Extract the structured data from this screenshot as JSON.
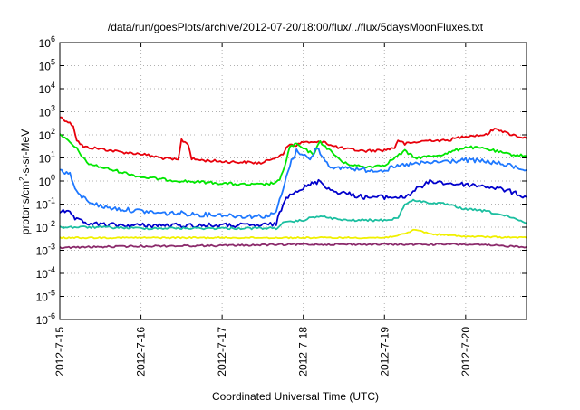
{
  "chart_data": {
    "type": "line",
    "title": "/data/run/goesPlots/archive/2012-07-20/18:00/flux/../flux/5daysMoonFluxes.txt",
    "xlabel": "Coordinated Universal Time (UTC)",
    "ylabel": {
      "prefix": "protons/cm",
      "sup": "2",
      "suffix": "-s-sr-MeV"
    },
    "y_scale": "log",
    "ylim": [
      1e-06,
      1000000.0
    ],
    "xlim": [
      "2012-07-15T00:00",
      "2012-07-20T18:00"
    ],
    "grid": true,
    "legend": "none",
    "x_ticks": [
      {
        "x": "2012-07-15T00:00",
        "label": "2012-7-15"
      },
      {
        "x": "2012-07-16T00:00",
        "label": "2012-7-16"
      },
      {
        "x": "2012-07-17T00:00",
        "label": "2012-7-17"
      },
      {
        "x": "2012-07-18T00:00",
        "label": "2012-7-18"
      },
      {
        "x": "2012-07-19T00:00",
        "label": "2012-7-19"
      },
      {
        "x": "2012-07-20T00:00",
        "label": "2012-7-20"
      }
    ],
    "y_ticks": [
      {
        "base": "10",
        "exp": "-6"
      },
      {
        "base": "10",
        "exp": "-5"
      },
      {
        "base": "10",
        "exp": "-4"
      },
      {
        "base": "10",
        "exp": "-3"
      },
      {
        "base": "10",
        "exp": "-2"
      },
      {
        "base": "10",
        "exp": "-1"
      },
      {
        "base": "10",
        "exp": "0"
      },
      {
        "base": "10",
        "exp": "1"
      },
      {
        "base": "10",
        "exp": "2"
      },
      {
        "base": "10",
        "exp": "3"
      },
      {
        "base": "10",
        "exp": "4"
      },
      {
        "base": "10",
        "exp": "5"
      },
      {
        "base": "10",
        "exp": "6"
      }
    ],
    "series": [
      {
        "color": "#e8000b",
        "x": [
          "2012-07-15T00:00",
          "2012-07-15T02:00",
          "2012-07-15T04:00",
          "2012-07-15T05:00",
          "2012-07-15T07:00",
          "2012-07-15T12:00",
          "2012-07-15T18:00",
          "2012-07-16T00:00",
          "2012-07-16T06:00",
          "2012-07-16T11:00",
          "2012-07-16T12:00",
          "2012-07-16T14:00",
          "2012-07-16T15:00",
          "2012-07-16T18:00",
          "2012-07-17T00:00",
          "2012-07-17T06:00",
          "2012-07-17T12:00",
          "2012-07-17T15:00",
          "2012-07-17T18:00",
          "2012-07-17T19:00",
          "2012-07-17T20:00",
          "2012-07-17T22:00",
          "2012-07-18T00:00",
          "2012-07-18T04:00",
          "2012-07-18T06:00",
          "2012-07-18T08:00",
          "2012-07-18T12:00",
          "2012-07-18T18:00",
          "2012-07-19T00:00",
          "2012-07-19T03:00",
          "2012-07-19T04:00",
          "2012-07-19T06:00",
          "2012-07-19T10:00",
          "2012-07-19T14:00",
          "2012-07-19T18:00",
          "2012-07-20T00:00",
          "2012-07-20T06:00",
          "2012-07-20T09:00",
          "2012-07-20T12:00",
          "2012-07-20T18:00"
        ],
        "y": [
          600,
          400,
          250,
          60,
          30,
          25,
          18,
          15,
          10,
          8,
          60,
          40,
          9,
          8,
          7,
          6.5,
          6,
          10,
          13,
          30,
          40,
          35,
          50,
          45,
          55,
          35,
          25,
          20,
          22,
          28,
          60,
          40,
          50,
          60,
          55,
          90,
          100,
          200,
          120,
          70
        ]
      },
      {
        "color": "#00e600",
        "x": [
          "2012-07-15T00:00",
          "2012-07-15T02:00",
          "2012-07-15T05:00",
          "2012-07-15T08:00",
          "2012-07-15T12:00",
          "2012-07-15T18:00",
          "2012-07-16T00:00",
          "2012-07-16T06:00",
          "2012-07-16T12:00",
          "2012-07-16T18:00",
          "2012-07-17T00:00",
          "2012-07-17T06:00",
          "2012-07-17T12:00",
          "2012-07-17T15:00",
          "2012-07-17T17:00",
          "2012-07-17T19:00",
          "2012-07-17T20:00",
          "2012-07-17T22:00",
          "2012-07-18T00:00",
          "2012-07-18T03:00",
          "2012-07-18T05:00",
          "2012-07-18T08:00",
          "2012-07-18T12:00",
          "2012-07-18T18:00",
          "2012-07-19T00:00",
          "2012-07-19T06:00",
          "2012-07-19T09:00",
          "2012-07-19T14:00",
          "2012-07-19T18:00",
          "2012-07-20T00:00",
          "2012-07-20T06:00",
          "2012-07-20T12:00",
          "2012-07-20T18:00"
        ],
        "y": [
          120,
          60,
          25,
          6,
          4,
          2.5,
          1.5,
          1.2,
          1,
          0.9,
          0.8,
          0.7,
          0.7,
          0.8,
          1,
          8,
          30,
          40,
          25,
          15,
          50,
          20,
          6,
          4,
          5,
          20,
          10,
          12,
          15,
          30,
          25,
          15,
          12
        ]
      },
      {
        "color": "#1e78ff",
        "x": [
          "2012-07-15T00:00",
          "2012-07-15T03:00",
          "2012-07-15T05:00",
          "2012-07-15T08:00",
          "2012-07-15T12:00",
          "2012-07-15T18:00",
          "2012-07-16T00:00",
          "2012-07-16T06:00",
          "2012-07-16T12:00",
          "2012-07-16T18:00",
          "2012-07-17T00:00",
          "2012-07-17T06:00",
          "2012-07-17T12:00",
          "2012-07-17T15:00",
          "2012-07-17T16:00",
          "2012-07-17T18:00",
          "2012-07-17T20:00",
          "2012-07-17T22:00",
          "2012-07-18T00:00",
          "2012-07-18T02:00",
          "2012-07-18T04:00",
          "2012-07-18T06:00",
          "2012-07-18T09:00",
          "2012-07-18T12:00",
          "2012-07-18T18:00",
          "2012-07-19T00:00",
          "2012-07-19T06:00",
          "2012-07-19T12:00",
          "2012-07-19T18:00",
          "2012-07-20T00:00",
          "2012-07-20T06:00",
          "2012-07-20T12:00",
          "2012-07-20T18:00"
        ],
        "y": [
          3,
          2,
          0.3,
          0.15,
          0.08,
          0.06,
          0.05,
          0.04,
          0.04,
          0.035,
          0.035,
          0.03,
          0.03,
          0.035,
          0.05,
          0.4,
          5,
          20,
          15,
          8,
          30,
          10,
          3,
          4,
          3,
          3,
          5,
          6,
          7,
          8,
          7,
          5,
          3
        ]
      },
      {
        "color": "#0000cc",
        "x": [
          "2012-07-15T00:00",
          "2012-07-15T03:00",
          "2012-07-15T05:00",
          "2012-07-15T08:00",
          "2012-07-15T12:00",
          "2012-07-15T18:00",
          "2012-07-16T00:00",
          "2012-07-16T06:00",
          "2012-07-16T12:00",
          "2012-07-16T18:00",
          "2012-07-17T00:00",
          "2012-07-17T06:00",
          "2012-07-17T12:00",
          "2012-07-17T16:00",
          "2012-07-17T18:00",
          "2012-07-17T20:00",
          "2012-07-18T00:00",
          "2012-07-18T03:00",
          "2012-07-18T05:00",
          "2012-07-18T08:00",
          "2012-07-18T12:00",
          "2012-07-18T18:00",
          "2012-07-19T00:00",
          "2012-07-19T06:00",
          "2012-07-19T09:00",
          "2012-07-19T14:00",
          "2012-07-19T18:00",
          "2012-07-20T00:00",
          "2012-07-20T06:00",
          "2012-07-20T12:00",
          "2012-07-20T18:00"
        ],
        "y": [
          0.05,
          0.04,
          0.02,
          0.015,
          0.013,
          0.012,
          0.012,
          0.012,
          0.012,
          0.012,
          0.012,
          0.012,
          0.012,
          0.014,
          0.1,
          0.3,
          0.5,
          0.8,
          1,
          0.4,
          0.3,
          0.2,
          0.2,
          0.2,
          0.4,
          1,
          0.8,
          0.7,
          0.6,
          0.4,
          0.2
        ]
      },
      {
        "color": "#1bbfa0",
        "x": [
          "2012-07-15T00:00",
          "2012-07-15T06:00",
          "2012-07-15T12:00",
          "2012-07-16T00:00",
          "2012-07-16T12:00",
          "2012-07-17T00:00",
          "2012-07-17T12:00",
          "2012-07-17T16:00",
          "2012-07-17T18:00",
          "2012-07-18T00:00",
          "2012-07-18T04:00",
          "2012-07-18T08:00",
          "2012-07-18T12:00",
          "2012-07-19T00:00",
          "2012-07-19T04:00",
          "2012-07-19T06:00",
          "2012-07-19T09:00",
          "2012-07-19T12:00",
          "2012-07-19T18:00",
          "2012-07-20T00:00",
          "2012-07-20T06:00",
          "2012-07-20T12:00",
          "2012-07-20T18:00"
        ],
        "y": [
          0.01,
          0.01,
          0.01,
          0.009,
          0.009,
          0.009,
          0.009,
          0.009,
          0.015,
          0.02,
          0.03,
          0.025,
          0.02,
          0.02,
          0.025,
          0.1,
          0.15,
          0.12,
          0.1,
          0.06,
          0.05,
          0.03,
          0.015
        ]
      },
      {
        "color": "#f0f000",
        "x": [
          "2012-07-15T00:00",
          "2012-07-16T00:00",
          "2012-07-17T00:00",
          "2012-07-18T00:00",
          "2012-07-19T00:00",
          "2012-07-19T06:00",
          "2012-07-19T09:00",
          "2012-07-19T14:00",
          "2012-07-20T00:00",
          "2012-07-20T18:00"
        ],
        "y": [
          0.0035,
          0.0035,
          0.0035,
          0.0035,
          0.0035,
          0.005,
          0.008,
          0.005,
          0.004,
          0.0035
        ]
      },
      {
        "color": "#8b2a6b",
        "x": [
          "2012-07-15T00:00",
          "2012-07-16T00:00",
          "2012-07-17T00:00",
          "2012-07-18T00:00",
          "2012-07-19T00:00",
          "2012-07-20T00:00",
          "2012-07-20T18:00"
        ],
        "y": [
          0.0013,
          0.0015,
          0.0016,
          0.0018,
          0.0018,
          0.0018,
          0.0014
        ]
      }
    ]
  }
}
